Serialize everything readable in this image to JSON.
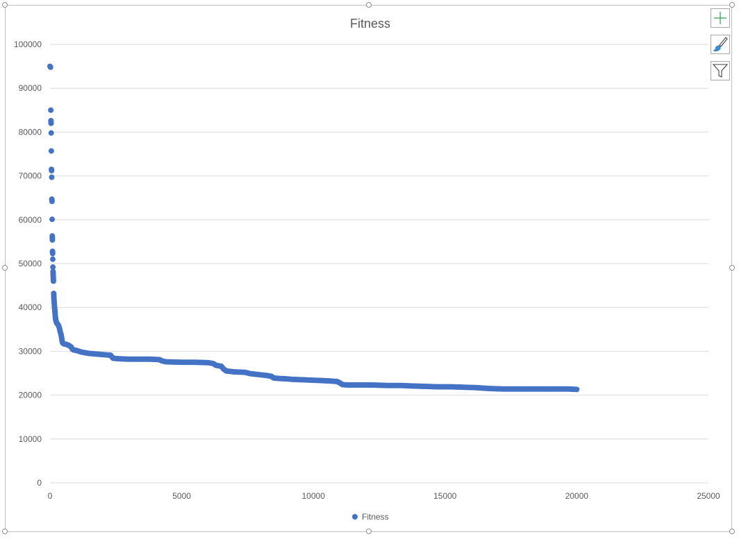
{
  "chart_tools": [
    {
      "name": "chart-elements-button",
      "icon": "plus-icon"
    },
    {
      "name": "chart-styles-button",
      "icon": "paintbrush-icon"
    },
    {
      "name": "chart-filters-button",
      "icon": "funnel-icon"
    }
  ],
  "colors": {
    "series": "#4472C4",
    "grid": "#d9d9d9",
    "axis_text": "#595959",
    "title_text": "#595959"
  },
  "chart_data": {
    "type": "scatter",
    "title": "Fitness",
    "xlabel": "",
    "ylabel": "",
    "xlim": [
      0,
      25000
    ],
    "ylim": [
      0,
      100000
    ],
    "x_ticks": [
      "0",
      "5000",
      "10000",
      "15000",
      "20000",
      "25000"
    ],
    "y_ticks": [
      "0",
      "10000",
      "20000",
      "30000",
      "40000",
      "50000",
      "60000",
      "70000",
      "80000",
      "90000",
      "100000"
    ],
    "grid": "horizontal",
    "legend_position": "bottom",
    "series": [
      {
        "name": "Fitness",
        "points": [
          [
            0,
            95000
          ],
          [
            20,
            94800
          ],
          [
            30,
            85000
          ],
          [
            35,
            82600
          ],
          [
            40,
            82000
          ],
          [
            45,
            79800
          ],
          [
            50,
            75700
          ],
          [
            55,
            71500
          ],
          [
            60,
            71200
          ],
          [
            65,
            69700
          ],
          [
            70,
            64700
          ],
          [
            75,
            64200
          ],
          [
            80,
            60100
          ],
          [
            85,
            56300
          ],
          [
            90,
            55400
          ],
          [
            95,
            52800
          ],
          [
            100,
            52300
          ],
          [
            105,
            51000
          ],
          [
            110,
            49200
          ],
          [
            115,
            48200
          ],
          [
            120,
            47500
          ],
          [
            125,
            46800
          ],
          [
            130,
            46000
          ],
          [
            140,
            43200
          ],
          [
            145,
            42600
          ],
          [
            150,
            41800
          ],
          [
            160,
            41000
          ],
          [
            170,
            40200
          ],
          [
            180,
            39500
          ],
          [
            190,
            38800
          ],
          [
            200,
            38000
          ],
          [
            215,
            37300
          ],
          [
            230,
            36800
          ],
          [
            260,
            36400
          ],
          [
            300,
            36100
          ],
          [
            330,
            35800
          ],
          [
            360,
            35200
          ],
          [
            390,
            34400
          ],
          [
            420,
            33800
          ],
          [
            440,
            33100
          ],
          [
            460,
            32300
          ],
          [
            480,
            31900
          ],
          [
            520,
            31700
          ],
          [
            600,
            31600
          ],
          [
            700,
            31400
          ],
          [
            800,
            31000
          ],
          [
            850,
            30500
          ],
          [
            900,
            30300
          ],
          [
            1000,
            30200
          ],
          [
            1100,
            30000
          ],
          [
            1200,
            29800
          ],
          [
            1300,
            29700
          ],
          [
            1400,
            29600
          ],
          [
            1500,
            29500
          ],
          [
            1700,
            29400
          ],
          [
            1900,
            29300
          ],
          [
            2100,
            29200
          ],
          [
            2300,
            29100
          ],
          [
            2350,
            28700
          ],
          [
            2400,
            28400
          ],
          [
            2600,
            28300
          ],
          [
            3000,
            28200
          ],
          [
            3400,
            28200
          ],
          [
            3800,
            28200
          ],
          [
            4150,
            28100
          ],
          [
            4250,
            27800
          ],
          [
            4400,
            27600
          ],
          [
            5000,
            27500
          ],
          [
            5500,
            27500
          ],
          [
            6000,
            27400
          ],
          [
            6200,
            27200
          ],
          [
            6300,
            26800
          ],
          [
            6500,
            26600
          ],
          [
            6600,
            25900
          ],
          [
            6700,
            25500
          ],
          [
            7000,
            25300
          ],
          [
            7400,
            25200
          ],
          [
            7600,
            24900
          ],
          [
            7900,
            24700
          ],
          [
            8200,
            24500
          ],
          [
            8400,
            24300
          ],
          [
            8500,
            23900
          ],
          [
            8700,
            23800
          ],
          [
            9000,
            23700
          ],
          [
            9200,
            23600
          ],
          [
            9600,
            23500
          ],
          [
            10000,
            23400
          ],
          [
            10400,
            23300
          ],
          [
            10700,
            23200
          ],
          [
            10900,
            23100
          ],
          [
            11000,
            22800
          ],
          [
            11100,
            22400
          ],
          [
            11300,
            22300
          ],
          [
            11800,
            22300
          ],
          [
            12300,
            22300
          ],
          [
            12800,
            22200
          ],
          [
            13300,
            22200
          ],
          [
            13700,
            22100
          ],
          [
            14200,
            22000
          ],
          [
            14700,
            21900
          ],
          [
            15200,
            21900
          ],
          [
            15700,
            21800
          ],
          [
            16200,
            21700
          ],
          [
            16700,
            21500
          ],
          [
            17200,
            21400
          ],
          [
            17700,
            21400
          ],
          [
            18200,
            21400
          ],
          [
            18700,
            21400
          ],
          [
            19200,
            21400
          ],
          [
            19700,
            21400
          ],
          [
            20000,
            21300
          ]
        ]
      }
    ]
  }
}
